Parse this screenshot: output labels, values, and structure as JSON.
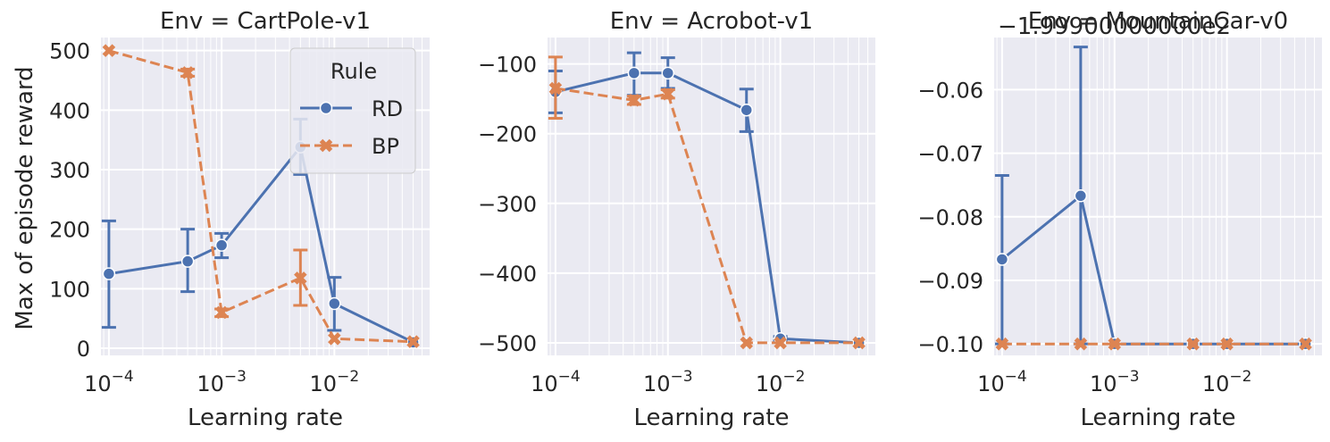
{
  "figure": {
    "ylabel": "Max of episode reward",
    "legend": {
      "title": "Rule",
      "entries": [
        {
          "label": "RD",
          "color": "#4c72b0",
          "marker": "circle",
          "dash": "solid"
        },
        {
          "label": "BP",
          "color": "#dd8452",
          "marker": "x",
          "dash": "dashed"
        }
      ],
      "placement": "top-right of first panel"
    },
    "style": "seaborn darkgrid"
  },
  "chart_data": [
    {
      "type": "line",
      "title": "Env = CartPole-v1",
      "xlabel": "Learning rate",
      "ylabel": "Max of episode reward",
      "xscale": "log",
      "xlim": [
        8.5e-05,
        0.07
      ],
      "ylim": [
        -12,
        522
      ],
      "yticks": [
        0,
        100,
        200,
        300,
        400,
        500
      ],
      "ytick_labels": [
        "0",
        "100",
        "200",
        "300",
        "400",
        "500"
      ],
      "xticks": [
        0.0001,
        0.001,
        0.01
      ],
      "xtick_labels": [
        "10",
        "10",
        "10"
      ],
      "xtick_exponents": [
        "−4",
        "−3",
        "−2"
      ],
      "offset_text": "",
      "grid": true,
      "series": [
        {
          "name": "RD",
          "color": "#4c72b0",
          "marker": "circle",
          "dash": "solid",
          "x": [
            0.0001,
            0.0005,
            0.001,
            0.005,
            0.01,
            0.05
          ],
          "y": [
            125,
            146,
            173,
            338,
            75,
            10
          ],
          "err_low": [
            35,
            95,
            152,
            292,
            30,
            10
          ],
          "err_high": [
            214,
            200,
            193,
            385,
            119,
            10
          ]
        },
        {
          "name": "BP",
          "color": "#dd8452",
          "marker": "x",
          "dash": "dashed",
          "x": [
            0.0001,
            0.0005,
            0.001,
            0.005,
            0.01,
            0.05
          ],
          "y": [
            500,
            463,
            60,
            118,
            16,
            11
          ],
          "err_low": [
            500,
            457,
            53,
            72,
            16,
            11
          ],
          "err_high": [
            500,
            469,
            66,
            165,
            16,
            11
          ]
        }
      ]
    },
    {
      "type": "line",
      "title": "Env = Acrobot-v1",
      "xlabel": "Learning rate",
      "ylabel": "",
      "xscale": "log",
      "xlim": [
        8.5e-05,
        0.07
      ],
      "ylim": [
        -518,
        -62
      ],
      "yticks": [
        -500,
        -400,
        -300,
        -200,
        -100
      ],
      "ytick_labels": [
        "−500",
        "−400",
        "−300",
        "−200",
        "−100"
      ],
      "xticks": [
        0.0001,
        0.001,
        0.01
      ],
      "xtick_labels": [
        "10",
        "10",
        "10"
      ],
      "xtick_exponents": [
        "−4",
        "−3",
        "−2"
      ],
      "offset_text": "",
      "grid": true,
      "series": [
        {
          "name": "RD",
          "color": "#4c72b0",
          "marker": "circle",
          "dash": "solid",
          "x": [
            0.0001,
            0.0005,
            0.001,
            0.005,
            0.01,
            0.05
          ],
          "y": [
            -140,
            -113,
            -113,
            -166,
            -494,
            -500
          ],
          "err_low": [
            -170,
            -145,
            -135,
            -197,
            -497,
            -500
          ],
          "err_high": [
            -110,
            -84,
            -91,
            -136,
            -491,
            -500
          ]
        },
        {
          "name": "BP",
          "color": "#dd8452",
          "marker": "x",
          "dash": "dashed",
          "x": [
            0.0001,
            0.0005,
            0.001,
            0.005,
            0.01,
            0.05
          ],
          "y": [
            -135,
            -152,
            -143,
            -500,
            -500,
            -500
          ],
          "err_low": [
            -178,
            -158,
            -149,
            -500,
            -500,
            -500
          ],
          "err_high": [
            -90,
            -146,
            -137,
            -500,
            -500,
            -500
          ]
        }
      ]
    },
    {
      "type": "line",
      "title": "Env = MountainCar-v0",
      "xlabel": "Learning rate",
      "ylabel": "",
      "xscale": "log",
      "xlim": [
        8.5e-05,
        0.07
      ],
      "ylim": [
        -0.1018,
        -0.0518
      ],
      "yticks": [
        -0.1,
        -0.09,
        -0.08,
        -0.07,
        -0.06
      ],
      "ytick_labels": [
        "−0.10",
        "−0.09",
        "−0.08",
        "−0.07",
        "−0.06"
      ],
      "xticks": [
        0.0001,
        0.001,
        0.01
      ],
      "xtick_labels": [
        "10",
        "10",
        "10"
      ],
      "xtick_exponents": [
        "−4",
        "−3",
        "−2"
      ],
      "offset_text": "−1.99900000000e2",
      "grid": true,
      "series": [
        {
          "name": "RD",
          "color": "#4c72b0",
          "marker": "circle",
          "dash": "solid",
          "x": [
            0.0001,
            0.0005,
            0.001,
            0.005,
            0.01,
            0.05
          ],
          "y": [
            -0.0867,
            -0.0767,
            -0.1,
            -0.1,
            -0.1,
            -0.1
          ],
          "err_low": [
            -0.1,
            -0.1,
            -0.1,
            -0.1,
            -0.1,
            -0.1
          ],
          "err_high": [
            -0.0735,
            -0.0533,
            -0.1,
            -0.1,
            -0.1,
            -0.1
          ]
        },
        {
          "name": "BP",
          "color": "#dd8452",
          "marker": "x",
          "dash": "dashed",
          "x": [
            0.0001,
            0.0005,
            0.001,
            0.005,
            0.01,
            0.05
          ],
          "y": [
            -0.1,
            -0.1,
            -0.1,
            -0.1,
            -0.1,
            -0.1
          ],
          "err_low": [
            -0.1,
            -0.1,
            -0.1,
            -0.1,
            -0.1,
            -0.1
          ],
          "err_high": [
            -0.1,
            -0.1,
            -0.1,
            -0.1,
            -0.1,
            -0.1
          ]
        }
      ]
    }
  ]
}
